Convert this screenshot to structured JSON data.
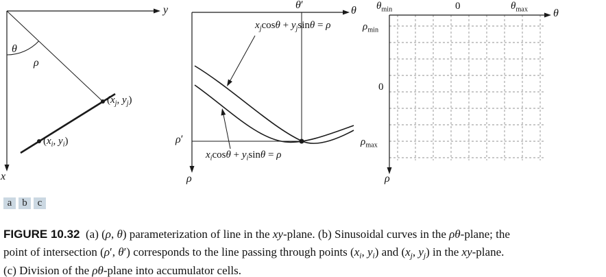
{
  "colors": {
    "stroke": "#1a1a1a",
    "dashed_grid": "#909090",
    "subfig_box_bg": "#cbd8e2",
    "text": "#111111"
  },
  "panel_a": {
    "y_label": [
      {
        "t": "y",
        "i": true
      }
    ],
    "x_label": [
      {
        "t": "x",
        "i": true
      }
    ],
    "theta_label": [
      {
        "t": "θ",
        "i": true
      }
    ],
    "rho_label": [
      {
        "t": "ρ",
        "i": true
      }
    ],
    "point_i": [
      {
        "t": "("
      },
      {
        "t": "x",
        "i": true
      },
      {
        "t": "i",
        "i": true,
        "s": true
      },
      {
        "t": ", "
      },
      {
        "t": "y",
        "i": true
      },
      {
        "t": "i",
        "i": true,
        "s": true
      },
      {
        "t": ")"
      }
    ],
    "point_j": [
      {
        "t": "("
      },
      {
        "t": "x",
        "i": true
      },
      {
        "t": "j",
        "i": true,
        "s": true
      },
      {
        "t": ", "
      },
      {
        "t": "y",
        "i": true
      },
      {
        "t": "j",
        "i": true,
        "s": true
      },
      {
        "t": ")"
      }
    ]
  },
  "panel_b": {
    "theta_prime_label": [
      {
        "t": "θ",
        "i": true
      },
      {
        "t": "′"
      }
    ],
    "theta_label": [
      {
        "t": "θ",
        "i": true
      }
    ],
    "rho_label": [
      {
        "t": "ρ",
        "i": true
      }
    ],
    "rho_prime_label": [
      {
        "t": "ρ",
        "i": true
      },
      {
        "t": "′"
      }
    ],
    "eq_j": [
      {
        "t": "x",
        "i": true
      },
      {
        "t": "j",
        "i": true,
        "s": true
      },
      {
        "t": "cos"
      },
      {
        "t": "θ",
        "i": true
      },
      {
        "t": " + "
      },
      {
        "t": "y",
        "i": true
      },
      {
        "t": "j",
        "i": true,
        "s": true
      },
      {
        "t": "sin"
      },
      {
        "t": "θ",
        "i": true
      },
      {
        "t": " = "
      },
      {
        "t": "ρ",
        "i": true
      }
    ],
    "eq_i": [
      {
        "t": "x",
        "i": true
      },
      {
        "t": "i",
        "i": true,
        "s": true
      },
      {
        "t": "cos"
      },
      {
        "t": "θ",
        "i": true
      },
      {
        "t": " + "
      },
      {
        "t": "y",
        "i": true
      },
      {
        "t": "i",
        "i": true,
        "s": true
      },
      {
        "t": "sin"
      },
      {
        "t": "θ",
        "i": true
      },
      {
        "t": " = "
      },
      {
        "t": "ρ",
        "i": true
      }
    ]
  },
  "panel_c": {
    "theta_min": [
      {
        "t": "θ",
        "i": true
      },
      {
        "t": "min",
        "s": true
      }
    ],
    "zero_top": [
      {
        "t": "0"
      }
    ],
    "theta_max": [
      {
        "t": "θ",
        "i": true
      },
      {
        "t": "max",
        "s": true
      }
    ],
    "theta_label": [
      {
        "t": "θ",
        "i": true
      }
    ],
    "rho_min": [
      {
        "t": "ρ",
        "i": true
      },
      {
        "t": "min",
        "s": true
      }
    ],
    "zero_left": [
      {
        "t": "0"
      }
    ],
    "rho_max": [
      {
        "t": "ρ",
        "i": true
      },
      {
        "t": "max",
        "s": true
      }
    ],
    "rho_label": [
      {
        "t": "ρ",
        "i": true
      }
    ]
  },
  "subfig": {
    "a": "a",
    "b": "b",
    "c": "c"
  },
  "caption": {
    "segments": [
      {
        "t": "FIGURE 10.32",
        "b": true,
        "f": true
      },
      {
        "t": "  (a) ("
      },
      {
        "t": "ρ",
        "i": true
      },
      {
        "t": ", "
      },
      {
        "t": "θ",
        "i": true
      },
      {
        "t": ") parameterization of line in the "
      },
      {
        "t": "xy",
        "i": true
      },
      {
        "t": "-plane. (b) Sinusoidal curves in the "
      },
      {
        "t": "ρθ",
        "i": true
      },
      {
        "t": "-plane; the"
      },
      {
        "br": true
      },
      {
        "t": "point of intersection ("
      },
      {
        "t": "ρ",
        "i": true
      },
      {
        "t": "′"
      },
      {
        "t": ", "
      },
      {
        "t": "θ",
        "i": true
      },
      {
        "t": "′"
      },
      {
        "t": ") corresponds to the line passing through points ("
      },
      {
        "t": "x",
        "i": true
      },
      {
        "t": "i",
        "i": true,
        "s": true
      },
      {
        "t": ", "
      },
      {
        "t": "y",
        "i": true
      },
      {
        "t": "i",
        "i": true,
        "s": true
      },
      {
        "t": ") and ("
      },
      {
        "t": "x",
        "i": true
      },
      {
        "t": "j",
        "i": true,
        "s": true
      },
      {
        "t": ", "
      },
      {
        "t": "y",
        "i": true
      },
      {
        "t": "j",
        "i": true,
        "s": true
      },
      {
        "t": ") in the "
      },
      {
        "t": "xy",
        "i": true
      },
      {
        "t": "-plane."
      },
      {
        "br": true
      },
      {
        "t": "(c) Division of the "
      },
      {
        "t": "ρθ",
        "i": true
      },
      {
        "t": "-plane into accumulator cells."
      }
    ]
  }
}
